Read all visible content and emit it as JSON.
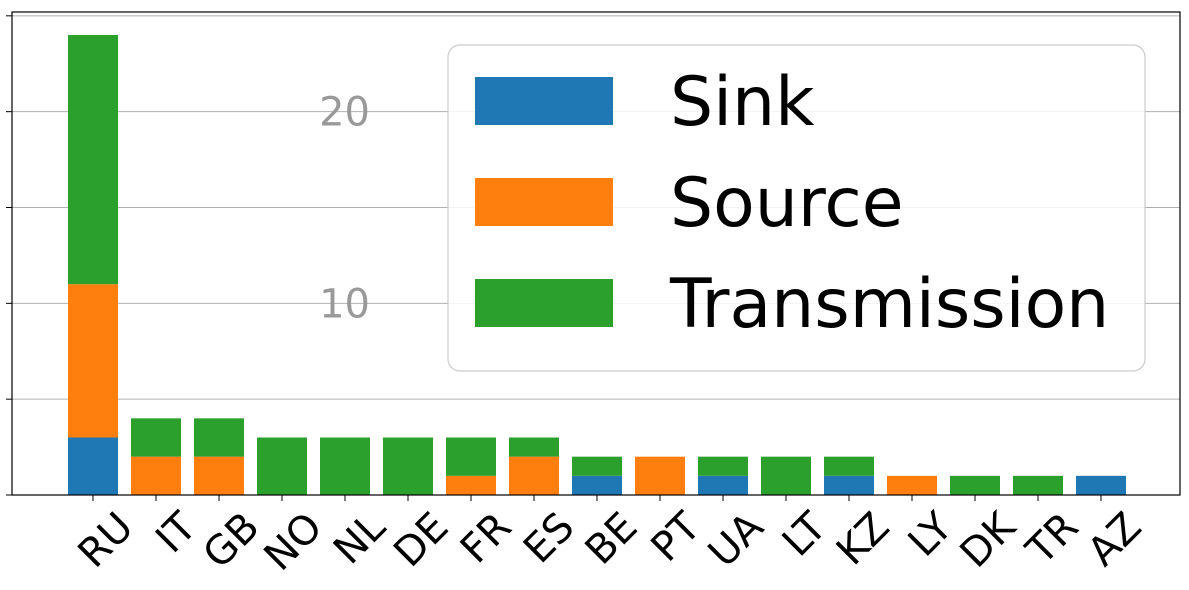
{
  "chart_data": {
    "type": "bar",
    "stacked": true,
    "categories": [
      "RU",
      "IT",
      "GB",
      "NO",
      "NL",
      "DE",
      "FR",
      "ES",
      "BE",
      "PT",
      "UA",
      "LT",
      "KZ",
      "LY",
      "DK",
      "TR",
      "AZ"
    ],
    "series": [
      {
        "name": "Sink",
        "color": "#1f77b4",
        "values": [
          3,
          0,
          0,
          0,
          0,
          0,
          0,
          0,
          1,
          0,
          1,
          0,
          1,
          0,
          0,
          0,
          1
        ]
      },
      {
        "name": "Source",
        "color": "#ff7f0e",
        "values": [
          8,
          2,
          2,
          0,
          0,
          0,
          1,
          2,
          0,
          2,
          0,
          0,
          0,
          1,
          0,
          0,
          0
        ]
      },
      {
        "name": "Transmission",
        "color": "#2ca02c",
        "values": [
          13,
          2,
          2,
          3,
          3,
          3,
          2,
          1,
          1,
          0,
          1,
          2,
          1,
          0,
          1,
          1,
          0
        ]
      }
    ],
    "yticks": [
      10,
      20
    ],
    "yticks_minor": [
      0,
      5,
      10,
      15,
      20,
      25
    ],
    "ylim": [
      0,
      25.2
    ],
    "grid": true,
    "legend_position": "top-right",
    "title": "",
    "xlabel": "",
    "ylabel": ""
  }
}
